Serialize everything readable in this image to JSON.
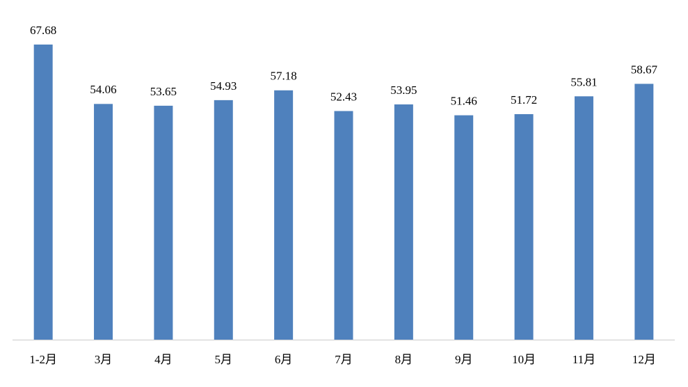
{
  "chart_data": {
    "type": "bar",
    "categories": [
      "1-2月",
      "3月",
      "4月",
      "5月",
      "6月",
      "7月",
      "8月",
      "9月",
      "10月",
      "11月",
      "12月"
    ],
    "values": [
      67.68,
      54.06,
      53.65,
      54.93,
      57.18,
      52.43,
      53.95,
      51.46,
      51.72,
      55.81,
      58.67
    ],
    "color": "#4f81bd"
  }
}
